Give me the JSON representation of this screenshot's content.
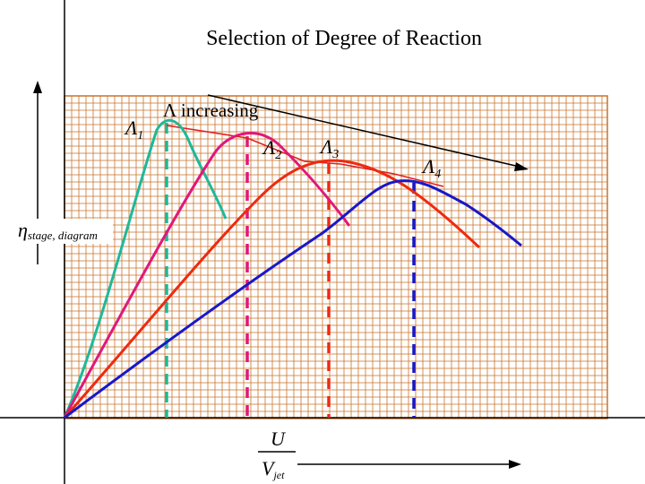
{
  "title": "Selection of Degree of Reaction",
  "annotation": "Λ increasing",
  "y_axis_label": {
    "symbol": "η",
    "subscript": "stage, diagram"
  },
  "x_axis_label": {
    "numerator": "U",
    "denominator": "V",
    "denominator_subscript": "jet"
  },
  "curves": [
    {
      "label": "Λ",
      "subscript": "1",
      "color": "#1fb89a"
    },
    {
      "label": "Λ",
      "subscript": "2",
      "color": "#e0187a"
    },
    {
      "label": "Λ",
      "subscript": "3",
      "color": "#ee2a10"
    },
    {
      "label": "Λ",
      "subscript": "4",
      "color": "#1818c8"
    }
  ],
  "colors": {
    "grid_line": "#c8732a",
    "envelope": "#e02020",
    "axis": "#000000"
  }
}
